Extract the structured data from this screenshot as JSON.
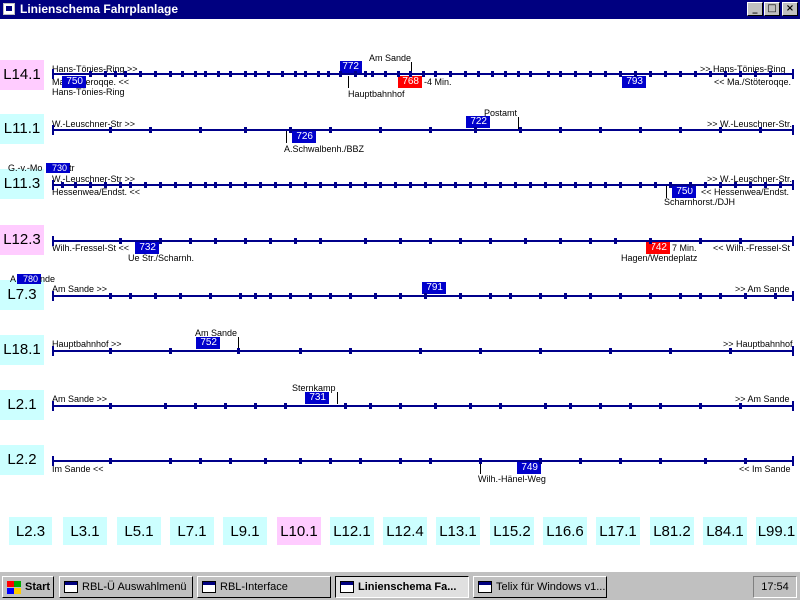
{
  "window": {
    "title": "Linienschema Fahrplanlage",
    "btn_min": "_",
    "btn_max": "□",
    "btn_close": "×"
  },
  "lines": [
    {
      "id": "L14.1",
      "color": "pink",
      "rows": [
        {
          "text": "Hans-Tönies-Ring >>",
          "side": "left",
          "pos": "above"
        },
        {
          "text": ">> Hans-Tönies-Ring",
          "side": "right",
          "pos": "above"
        },
        {
          "text": "Ma./Stöteroqqe. <<",
          "side": "left",
          "pos": "below1"
        },
        {
          "text": "Hans-Tönies-Ring",
          "side": "left",
          "pos": "below2"
        },
        {
          "text": "<< Ma./Stöteroqqe.",
          "side": "right",
          "pos": "below1"
        }
      ],
      "stops": [
        {
          "text": "Am Sande",
          "above": true
        },
        {
          "text": "Hauptbahnhof",
          "above": false
        }
      ],
      "vehicles": [
        {
          "num": "772",
          "color": "blue"
        },
        {
          "num": "750",
          "color": "blue"
        },
        {
          "num": "768",
          "color": "red",
          "delay": "-4 Min."
        },
        {
          "num": "793",
          "color": "blue"
        }
      ]
    },
    {
      "id": "L11.1",
      "color": "cyan",
      "rows": [
        {
          "text": "W.-Leuschner-Str >>",
          "side": "left"
        },
        {
          "text": ">> W.-Leuschner-Str."
        }
      ],
      "stops": [
        {
          "text": "Postamt"
        },
        {
          "text": "A.Schwalbenh./BBZ"
        }
      ],
      "vehicles": [
        {
          "num": "722",
          "color": "blue"
        },
        {
          "num": "726",
          "color": "blue"
        }
      ]
    },
    {
      "id": "L11.3",
      "color": "cyan",
      "rows": [
        {
          "text": "G.-v.-Mo"
        },
        {
          "text": "W.-Leuschner-Str >>"
        },
        {
          "text": ">> W.-Leuschner-Str."
        },
        {
          "text": "Hessenwea/Endst. <<"
        },
        {
          "text": "<< Hessenwea/Endst."
        }
      ],
      "stops": [
        {
          "text": "Scharnhorst./DJH"
        }
      ],
      "vehicles": [
        {
          "num": "730",
          "color": "blue",
          "suffix": "tr"
        },
        {
          "num": "750",
          "color": "blue"
        }
      ]
    },
    {
      "id": "L12.3",
      "color": "pink",
      "rows": [
        {
          "text": "Wilh.-Fressel-St <<"
        },
        {
          "text": "<< Wilh.-Fressel-St"
        }
      ],
      "stops": [
        {
          "text": "Ue Str./Scharnh."
        },
        {
          "text": "Hagen/Wendeplatz"
        }
      ],
      "vehicles": [
        {
          "num": "732",
          "color": "blue"
        },
        {
          "num": "742",
          "color": "red",
          "delay": "7 Min."
        }
      ]
    },
    {
      "id": "L7.3",
      "color": "cyan",
      "rows": [
        {
          "text": "A"
        },
        {
          "text": "Am Sande >>"
        },
        {
          "text": ">> Am Sande"
        }
      ],
      "stops": [],
      "vehicles": [
        {
          "num": "780",
          "color": "blue",
          "suffix": "nde"
        },
        {
          "num": "791",
          "color": "blue"
        }
      ]
    },
    {
      "id": "L18.1",
      "color": "cyan",
      "rows": [
        {
          "text": "Hauptbahnhof >>"
        },
        {
          "text": ">> Hauptbahnhof"
        }
      ],
      "stops": [
        {
          "text": "Am Sande"
        }
      ],
      "vehicles": [
        {
          "num": "752",
          "color": "blue"
        }
      ]
    },
    {
      "id": "L2.1",
      "color": "cyan",
      "rows": [
        {
          "text": "Am Sande >>"
        },
        {
          "text": ">> Am Sande"
        }
      ],
      "stops": [
        {
          "text": "Sternkamp"
        }
      ],
      "vehicles": [
        {
          "num": "731",
          "color": "blue"
        }
      ]
    },
    {
      "id": "L2.2",
      "color": "cyan",
      "rows": [
        {
          "text": "Im Sande <<"
        },
        {
          "text": "<< Im Sande"
        }
      ],
      "stops": [
        {
          "text": "Wilh.-Hänel-Weg"
        }
      ],
      "vehicles": [
        {
          "num": "749",
          "color": "blue"
        }
      ]
    }
  ],
  "bottom_lines": [
    {
      "id": "L2.3",
      "color": "cyan"
    },
    {
      "id": "L3.1",
      "color": "cyan"
    },
    {
      "id": "L5.1",
      "color": "cyan"
    },
    {
      "id": "L7.1",
      "color": "cyan"
    },
    {
      "id": "L9.1",
      "color": "cyan"
    },
    {
      "id": "L10.1",
      "color": "pink"
    },
    {
      "id": "L12.1",
      "color": "cyan"
    },
    {
      "id": "L12.4",
      "color": "cyan"
    },
    {
      "id": "L13.1",
      "color": "cyan"
    },
    {
      "id": "L15.2",
      "color": "cyan"
    },
    {
      "id": "L16.6",
      "color": "cyan"
    },
    {
      "id": "L17.1",
      "color": "cyan"
    },
    {
      "id": "L81.2",
      "color": "cyan"
    },
    {
      "id": "L84.1",
      "color": "cyan"
    },
    {
      "id": "L99.1",
      "color": "cyan"
    }
  ],
  "taskbar": {
    "start": "Start",
    "items": [
      "RBL-Ü Auswahlmenü",
      "RBL-Interface",
      "Linienschema Fa...",
      "Telix für Windows v1...."
    ],
    "clock": "17:54"
  },
  "colors": {
    "titlebar": "#000080",
    "track": "#00008b",
    "vehicle_blue": "#0000cc",
    "vehicle_red": "#ff0000",
    "highlight_cyan": "#ccffff",
    "highlight_pink": "#ffccff"
  }
}
